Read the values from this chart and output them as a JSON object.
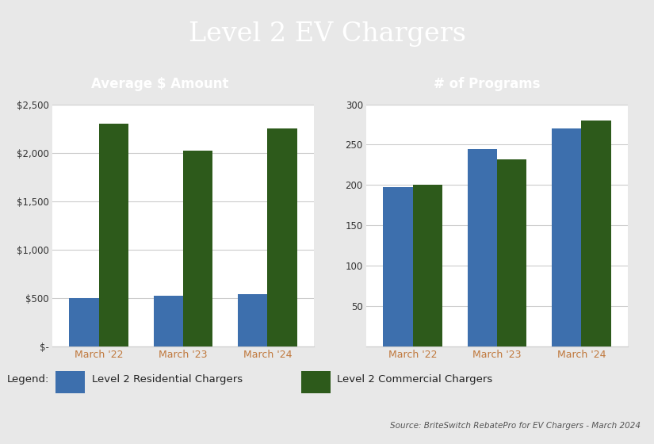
{
  "title": "Level 2 EV Chargers",
  "title_bg_color": "#0d1b4b",
  "title_text_color": "#ffffff",
  "subtitle_bg_color": "#808b9e",
  "subtitle_text_color": "#ffffff",
  "left_subtitle": "Average $ Amount",
  "right_subtitle": "# of Programs",
  "categories": [
    "March '22",
    "March '23",
    "March '24"
  ],
  "avg_residential": [
    500,
    525,
    540
  ],
  "avg_commercial": [
    2300,
    2020,
    2255
  ],
  "prog_residential": [
    197,
    245,
    270
  ],
  "prog_commercial": [
    200,
    232,
    280
  ],
  "bar_color_residential": "#3d6fad",
  "bar_color_commercial": "#2d5a1b",
  "left_ylim": [
    0,
    2500
  ],
  "left_yticks": [
    0,
    500,
    1000,
    1500,
    2000,
    2500
  ],
  "left_yticklabels": [
    "$-",
    "$500",
    "$1,000",
    "$1,500",
    "$2,000",
    "$2,500"
  ],
  "right_ylim": [
    0,
    300
  ],
  "right_yticks": [
    0,
    50,
    100,
    150,
    200,
    250,
    300
  ],
  "right_yticklabels": [
    "",
    "50",
    "100",
    "150",
    "200",
    "250",
    "300"
  ],
  "legend_label_residential": "Level 2 Residential Chargers",
  "legend_label_commercial": "Level 2 Commercial Chargers",
  "source_text": "Source: BriteSwitch RebatePro for EV Chargers - March 2024",
  "chart_bg_color": "#e8e8e8",
  "plot_bg_color": "#ffffff",
  "xtick_color": "#c0783c",
  "grid_color": "#cccccc",
  "bar_width": 0.35
}
